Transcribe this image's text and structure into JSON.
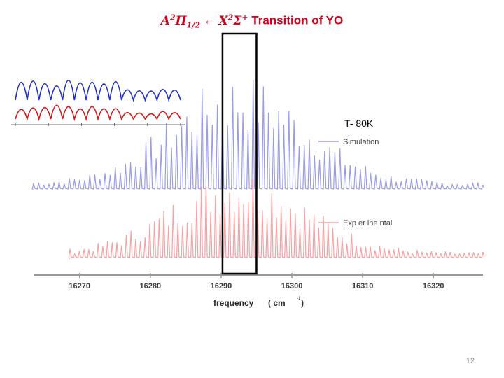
{
  "slide": {
    "title_math_A": "A",
    "title_math_A_sup": "2",
    "title_math_Pi": "Π",
    "title_math_Pi_sub": "1/2",
    "title_arrow": " ← ",
    "title_math_X": "X",
    "title_math_X_sup": "2",
    "title_math_Sigma": "Σ",
    "title_math_Sigma_sup": "+",
    "title_text": " Transition of YO",
    "temperature_label": "T- 80K",
    "page_number": "12"
  },
  "chart_data": {
    "type": "line",
    "xlabel": "frequency",
    "xunit": "( cm",
    "xunit_sup": "-1",
    "xunit_close": ")",
    "xticks": [
      16270,
      16280,
      16290,
      16300,
      16310,
      16320
    ],
    "xlim": [
      16263.5,
      16327
    ],
    "series": [
      {
        "name": "Simulation",
        "color": "#9a9ce8"
      },
      {
        "name": "Exp er ine ntal",
        "color": "#f2a3a3"
      }
    ],
    "highlight_box": {
      "x_range": [
        16290.2,
        16295.0
      ]
    },
    "inset": {
      "series": [
        {
          "color": "#1f2ec9"
        },
        {
          "color": "#d61414"
        }
      ]
    }
  }
}
